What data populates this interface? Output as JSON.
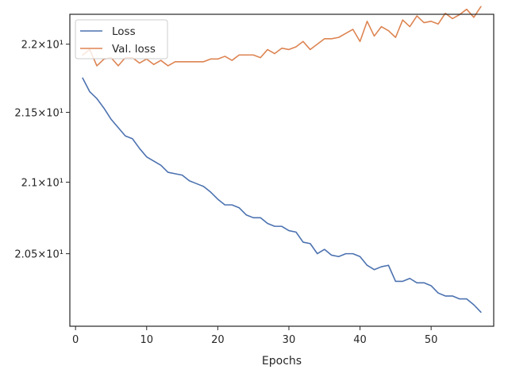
{
  "chart_data": {
    "type": "line",
    "title": "",
    "xlabel": "Epochs",
    "ylabel": "",
    "xlim": [
      -0.8,
      58.8
    ],
    "ylim": [
      20.005,
      22.2225
    ],
    "xticks": [
      0,
      10,
      20,
      30,
      40,
      50
    ],
    "xtick_labels": [
      "0",
      "10",
      "20",
      "30",
      "40",
      "50"
    ],
    "yticks": [
      20.5,
      21.0,
      21.5,
      22.0
    ],
    "ytick_labels": [
      "2.05×10¹",
      "2.1×10¹",
      "2.15×10¹",
      "2.2×10¹"
    ],
    "yscale": "log",
    "grid": false,
    "legend_position": "top-left",
    "x": [
      1,
      2,
      3,
      4,
      5,
      6,
      7,
      8,
      9,
      10,
      11,
      12,
      13,
      14,
      15,
      16,
      17,
      18,
      19,
      20,
      21,
      22,
      23,
      24,
      25,
      26,
      27,
      28,
      29,
      30,
      31,
      32,
      33,
      34,
      35,
      36,
      37,
      38,
      39,
      40,
      41,
      42,
      43,
      44,
      45,
      46,
      47,
      48,
      49,
      50,
      51,
      52,
      53,
      54,
      55,
      56,
      57
    ],
    "series": [
      {
        "name": "Loss",
        "color": "#4c72b0",
        "values": [
          21.75,
          21.65,
          21.6,
          21.53,
          21.45,
          21.39,
          21.33,
          21.31,
          21.24,
          21.18,
          21.15,
          21.12,
          21.07,
          21.06,
          21.05,
          21.01,
          20.99,
          20.97,
          20.93,
          20.88,
          20.84,
          20.84,
          20.82,
          20.77,
          20.75,
          20.75,
          20.71,
          20.69,
          20.69,
          20.66,
          20.65,
          20.58,
          20.57,
          20.5,
          20.53,
          20.49,
          20.48,
          20.5,
          20.5,
          20.48,
          20.42,
          20.39,
          20.41,
          20.42,
          20.31,
          20.31,
          20.33,
          20.3,
          20.3,
          20.28,
          20.23,
          20.21,
          20.21,
          20.19,
          20.19,
          20.15,
          20.1
        ]
      },
      {
        "name": "Val. loss",
        "color": "#dd8452",
        "values": [
          21.92,
          21.96,
          21.84,
          21.89,
          21.9,
          21.84,
          21.9,
          21.9,
          21.86,
          21.89,
          21.85,
          21.88,
          21.84,
          21.87,
          21.87,
          21.87,
          21.87,
          21.87,
          21.89,
          21.89,
          21.91,
          21.88,
          21.92,
          21.92,
          21.92,
          21.9,
          21.96,
          21.93,
          21.97,
          21.96,
          21.98,
          22.02,
          21.96,
          22.0,
          22.04,
          22.04,
          22.05,
          22.08,
          22.11,
          22.02,
          22.17,
          22.06,
          22.13,
          22.1,
          22.05,
          22.18,
          22.13,
          22.21,
          22.16,
          22.17,
          22.15,
          22.23,
          22.19,
          22.22,
          22.26,
          22.2,
          22.28
        ]
      }
    ]
  }
}
